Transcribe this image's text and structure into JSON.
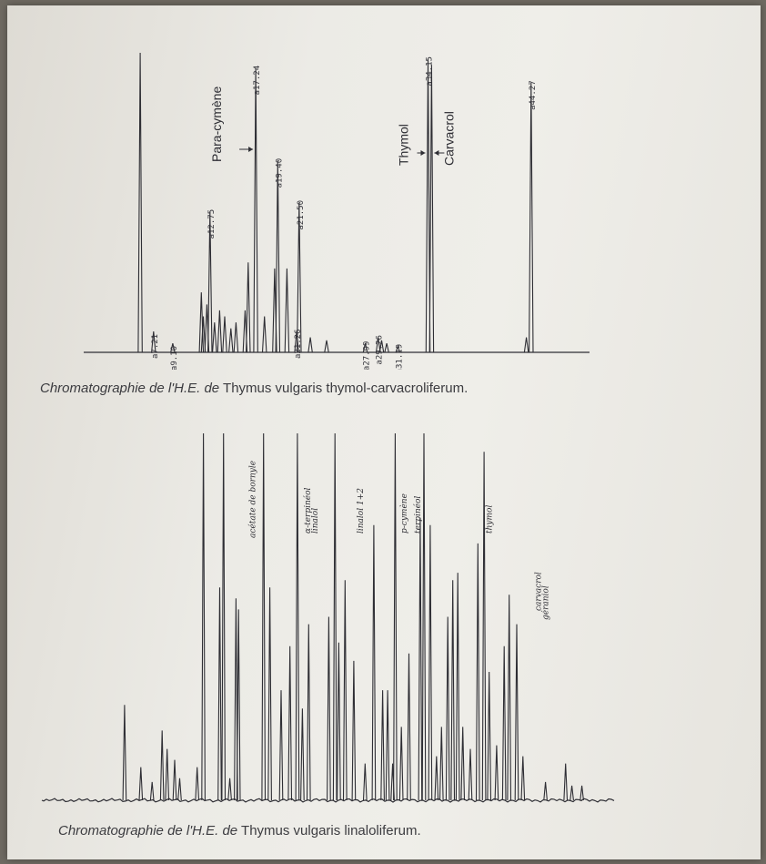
{
  "chart_data": [
    {
      "type": "chromatogram",
      "title": "",
      "xlabel": "",
      "ylabel": "",
      "caption": {
        "italic": "Chromatographie de l'H.E. de",
        "normal": "Thymus vulgaris thymol-carvacroliferum."
      },
      "compounds": [
        {
          "name": "Para-cymène",
          "rt": 17.24
        },
        {
          "name": "Thymol",
          "rt": 34.15
        },
        {
          "name": "Carvacrol",
          "rt": 34.5
        }
      ],
      "retention_labels": [
        "7.21",
        "9.10",
        "12.75",
        "17.24",
        "19.40",
        "21.50",
        "21.26",
        "27.99",
        "29.26",
        "31.19",
        "34.15",
        "44.27"
      ],
      "peaks": [
        {
          "rt": 5.9,
          "h": 1.0
        },
        {
          "rt": 7.21,
          "h": 0.07
        },
        {
          "rt": 9.1,
          "h": 0.03
        },
        {
          "rt": 11.9,
          "h": 0.2
        },
        {
          "rt": 12.1,
          "h": 0.12
        },
        {
          "rt": 12.45,
          "h": 0.16
        },
        {
          "rt": 12.75,
          "h": 0.47
        },
        {
          "rt": 13.2,
          "h": 0.1
        },
        {
          "rt": 13.7,
          "h": 0.14
        },
        {
          "rt": 14.2,
          "h": 0.12
        },
        {
          "rt": 14.8,
          "h": 0.08
        },
        {
          "rt": 15.3,
          "h": 0.1
        },
        {
          "rt": 16.2,
          "h": 0.14
        },
        {
          "rt": 16.5,
          "h": 0.3
        },
        {
          "rt": 17.24,
          "h": 0.95
        },
        {
          "rt": 18.1,
          "h": 0.12
        },
        {
          "rt": 19.1,
          "h": 0.28
        },
        {
          "rt": 19.4,
          "h": 0.64
        },
        {
          "rt": 20.3,
          "h": 0.28
        },
        {
          "rt": 21.26,
          "h": 0.07
        },
        {
          "rt": 21.5,
          "h": 0.5
        },
        {
          "rt": 22.6,
          "h": 0.05
        },
        {
          "rt": 24.2,
          "h": 0.04
        },
        {
          "rt": 27.99,
          "h": 0.03
        },
        {
          "rt": 29.26,
          "h": 0.05
        },
        {
          "rt": 29.6,
          "h": 0.04
        },
        {
          "rt": 30.1,
          "h": 0.03
        },
        {
          "rt": 31.19,
          "h": 0.02
        },
        {
          "rt": 34.15,
          "h": 0.98
        },
        {
          "rt": 34.5,
          "h": 0.96
        },
        {
          "rt": 43.8,
          "h": 0.05
        },
        {
          "rt": 44.27,
          "h": 0.9
        }
      ]
    },
    {
      "type": "chromatogram",
      "title": "",
      "xlabel": "",
      "ylabel": "",
      "caption": {
        "italic": "Chromatographie de l'H.E. de",
        "normal": "Thymus vulgaris linaloliferum."
      },
      "annotations": [
        {
          "text": "acétate de bornyle",
          "rt": 15.2
        },
        {
          "text": "α-terpinéol",
          "rt": 19.6
        },
        {
          "text": "linalol",
          "rt": 20.2
        },
        {
          "text": "linalol 1+2",
          "rt": 23.8
        },
        {
          "text": "p-cymène",
          "rt": 27.3
        },
        {
          "text": "terpinéol",
          "rt": 28.4
        },
        {
          "text": "thymol",
          "rt": 34.1
        },
        {
          "text": "carvacrol",
          "rt": 38.0
        },
        {
          "text": "géraniol",
          "rt": 38.6
        }
      ],
      "peaks": [
        {
          "rt": 5.0,
          "h": 0.26
        },
        {
          "rt": 6.3,
          "h": 0.09
        },
        {
          "rt": 7.2,
          "h": 0.05
        },
        {
          "rt": 8.0,
          "h": 0.19
        },
        {
          "rt": 8.4,
          "h": 0.14
        },
        {
          "rt": 9.0,
          "h": 0.11
        },
        {
          "rt": 9.4,
          "h": 0.06
        },
        {
          "rt": 10.8,
          "h": 0.09
        },
        {
          "rt": 11.3,
          "h": 1.0
        },
        {
          "rt": 12.6,
          "h": 0.58
        },
        {
          "rt": 12.9,
          "h": 1.0
        },
        {
          "rt": 13.4,
          "h": 0.06
        },
        {
          "rt": 13.9,
          "h": 0.55
        },
        {
          "rt": 14.1,
          "h": 0.52
        },
        {
          "rt": 16.1,
          "h": 1.0
        },
        {
          "rt": 16.6,
          "h": 0.58
        },
        {
          "rt": 17.5,
          "h": 0.3
        },
        {
          "rt": 18.2,
          "h": 0.42
        },
        {
          "rt": 18.8,
          "h": 1.0
        },
        {
          "rt": 19.2,
          "h": 0.25
        },
        {
          "rt": 19.7,
          "h": 0.48
        },
        {
          "rt": 21.3,
          "h": 0.5
        },
        {
          "rt": 21.8,
          "h": 1.0
        },
        {
          "rt": 22.1,
          "h": 0.43
        },
        {
          "rt": 22.6,
          "h": 0.6
        },
        {
          "rt": 23.3,
          "h": 0.38
        },
        {
          "rt": 24.2,
          "h": 0.1
        },
        {
          "rt": 24.9,
          "h": 0.75
        },
        {
          "rt": 25.6,
          "h": 0.3
        },
        {
          "rt": 26.0,
          "h": 0.3
        },
        {
          "rt": 26.4,
          "h": 0.1
        },
        {
          "rt": 26.6,
          "h": 1.0
        },
        {
          "rt": 27.1,
          "h": 0.2
        },
        {
          "rt": 27.7,
          "h": 0.4
        },
        {
          "rt": 28.6,
          "h": 0.77
        },
        {
          "rt": 28.9,
          "h": 1.0
        },
        {
          "rt": 29.4,
          "h": 0.75
        },
        {
          "rt": 29.9,
          "h": 0.12
        },
        {
          "rt": 30.3,
          "h": 0.2
        },
        {
          "rt": 30.8,
          "h": 0.5
        },
        {
          "rt": 31.2,
          "h": 0.6
        },
        {
          "rt": 31.6,
          "h": 0.62
        },
        {
          "rt": 32.0,
          "h": 0.2
        },
        {
          "rt": 32.6,
          "h": 0.14
        },
        {
          "rt": 33.2,
          "h": 0.7
        },
        {
          "rt": 33.7,
          "h": 0.95
        },
        {
          "rt": 34.1,
          "h": 0.35
        },
        {
          "rt": 34.7,
          "h": 0.15
        },
        {
          "rt": 35.3,
          "h": 0.42
        },
        {
          "rt": 35.7,
          "h": 0.56
        },
        {
          "rt": 36.3,
          "h": 0.48
        },
        {
          "rt": 36.8,
          "h": 0.12
        },
        {
          "rt": 38.6,
          "h": 0.05
        },
        {
          "rt": 40.2,
          "h": 0.1
        },
        {
          "rt": 40.7,
          "h": 0.04
        },
        {
          "rt": 41.5,
          "h": 0.04
        }
      ]
    }
  ]
}
